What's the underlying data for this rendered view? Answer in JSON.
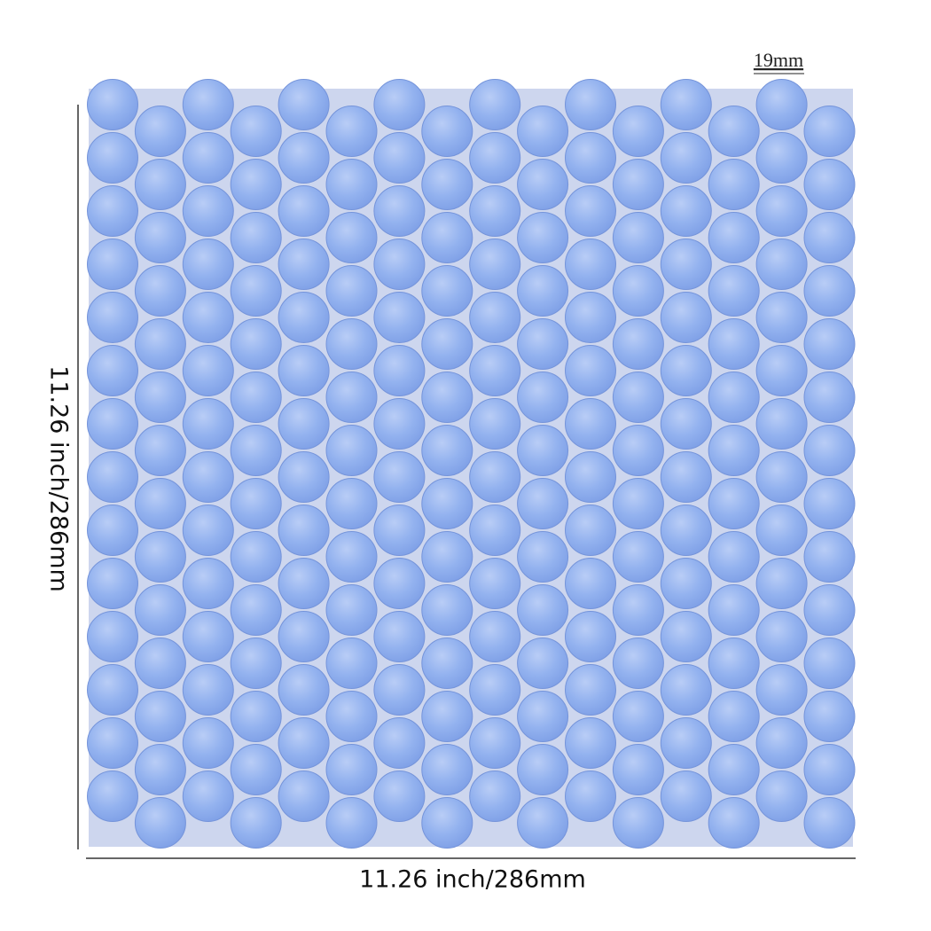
{
  "tile_label": "19mm",
  "height_label": "11.26 inch/286mm",
  "width_label": "11.26 inch/286mm"
}
